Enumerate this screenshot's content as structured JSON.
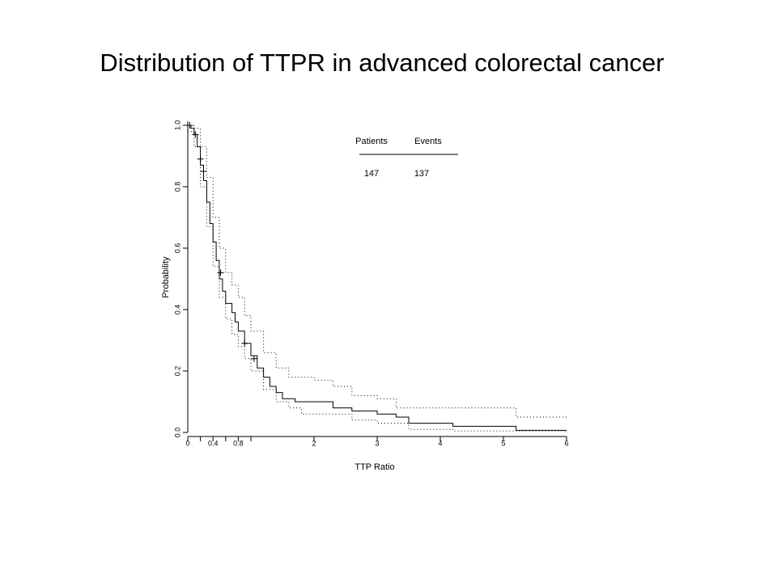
{
  "chart_data": {
    "type": "step",
    "title": "Distribution of TTPR in advanced colorectal cancer",
    "xlabel": "TTP Ratio",
    "ylabel": "Probability",
    "xlim": [
      0,
      6
    ],
    "ylim": [
      0,
      1
    ],
    "xticks": [
      0,
      0.4,
      0.8,
      2,
      3,
      4,
      5,
      6
    ],
    "xminorticks": [
      0.2,
      0.6,
      1
    ],
    "yticks": [
      {
        "value": 0,
        "label": "0.0"
      },
      {
        "value": 0.2,
        "label": "0.2"
      },
      {
        "value": 0.4,
        "label": "0.4"
      },
      {
        "value": 0.6,
        "label": "0.6"
      },
      {
        "value": 0.8,
        "label": "0.8"
      },
      {
        "value": 1,
        "label": "1.0"
      }
    ],
    "color": "#000000",
    "series": [
      {
        "style": "solid",
        "x": [
          0,
          0.05,
          0.1,
          0.15,
          0.2,
          0.25,
          0.3,
          0.35,
          0.4,
          0.45,
          0.5,
          0.55,
          0.6,
          0.7,
          0.75,
          0.8,
          0.9,
          1.0,
          1.1,
          1.2,
          1.3,
          1.4,
          1.5,
          1.7,
          2.0,
          2.3,
          2.6,
          3.0,
          3.3,
          3.5,
          4.2,
          5.2,
          6.0
        ],
        "values": [
          1.0,
          0.99,
          0.97,
          0.93,
          0.87,
          0.82,
          0.75,
          0.68,
          0.62,
          0.56,
          0.5,
          0.46,
          0.42,
          0.39,
          0.36,
          0.33,
          0.29,
          0.25,
          0.21,
          0.18,
          0.15,
          0.13,
          0.11,
          0.1,
          0.1,
          0.08,
          0.07,
          0.06,
          0.05,
          0.03,
          0.02,
          0.007,
          0.007
        ]
      },
      {
        "style": "dotted",
        "x": [
          0,
          0.1,
          0.2,
          0.3,
          0.4,
          0.5,
          0.6,
          0.7,
          0.8,
          0.9,
          1.0,
          1.2,
          1.4,
          1.6,
          2.0,
          2.3,
          2.6,
          3.0,
          3.3,
          4.2,
          5.2,
          6.0
        ],
        "values": [
          1.0,
          0.99,
          0.93,
          0.83,
          0.7,
          0.6,
          0.52,
          0.48,
          0.44,
          0.38,
          0.33,
          0.26,
          0.21,
          0.18,
          0.17,
          0.15,
          0.12,
          0.11,
          0.08,
          0.08,
          0.05,
          0.05
        ]
      },
      {
        "style": "dotted",
        "x": [
          0,
          0.1,
          0.2,
          0.3,
          0.4,
          0.5,
          0.6,
          0.7,
          0.8,
          0.9,
          1.0,
          1.2,
          1.4,
          1.6,
          1.8,
          2.0,
          2.6,
          3.0,
          3.5,
          4.2,
          6.0
        ],
        "values": [
          0.98,
          0.93,
          0.8,
          0.67,
          0.54,
          0.44,
          0.37,
          0.32,
          0.28,
          0.24,
          0.2,
          0.14,
          0.1,
          0.08,
          0.06,
          0.06,
          0.04,
          0.03,
          0.01,
          0.005,
          0
        ]
      }
    ],
    "censored": {
      "x": [
        0.03,
        0.12,
        0.2,
        0.25,
        0.52,
        0.9,
        1.05
      ],
      "values": [
        1.0,
        0.97,
        0.89,
        0.85,
        0.52,
        0.29,
        0.24
      ]
    },
    "table": {
      "headers": [
        "Patients",
        "Events"
      ],
      "row": [
        "147",
        "137"
      ]
    }
  }
}
